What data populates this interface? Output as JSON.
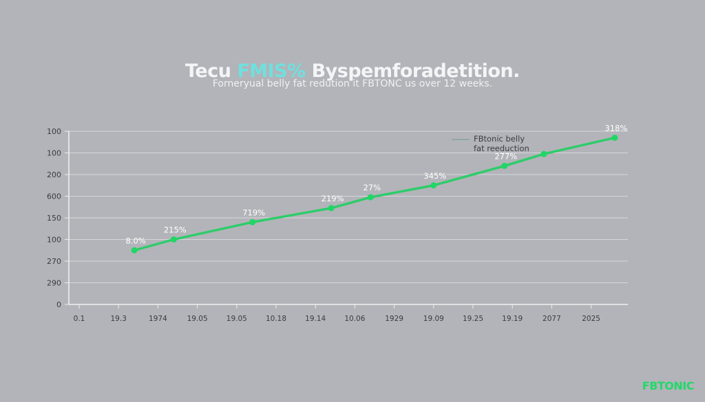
{
  "title": {
    "part1": "Tecu ",
    "accent": "FMIS%",
    "part2": " Byspemforadetition."
  },
  "subtitle": "Forneryual belly fat redution it FBTONC us over 12 weeks.",
  "brand": "FBTONIC",
  "colors": {
    "background": "#b3b4b9",
    "line": "#2ecc6a",
    "accent": "#6fe0de",
    "brand": "#22d86a"
  },
  "chart_data": {
    "type": "line",
    "title": "Tecu FMIS% Byspemforadetition.",
    "subtitle": "Forneryual belly fat redution it FBTONC us over 12 weeks.",
    "xlabel": "",
    "ylabel": "",
    "y_tick_labels": [
      "100",
      "100",
      "200",
      "600",
      "150",
      "100",
      "270",
      "290",
      "0"
    ],
    "x_tick_labels": [
      "0.1",
      "19.3",
      "1974",
      "19.05",
      "19.05",
      "10.18",
      "19.14",
      "10.06",
      "1929",
      "19.09",
      "19.25",
      "19.19",
      "2077",
      "2025"
    ],
    "grid": true,
    "legend": {
      "position": "top-right",
      "entries": [
        "FBtonic belly fat reeduction"
      ]
    },
    "series": [
      {
        "name": "FBtonic belly fat reeduction",
        "points": [
          {
            "label": "8.0%",
            "x_pos": 1.4,
            "y_pos": 2.5
          },
          {
            "label": "215%",
            "x_pos": 2.4,
            "y_pos": 3.0
          },
          {
            "label": "719%",
            "x_pos": 4.4,
            "y_pos": 3.8
          },
          {
            "label": "219%",
            "x_pos": 6.4,
            "y_pos": 4.45
          },
          {
            "label": "27%",
            "x_pos": 7.4,
            "y_pos": 4.95
          },
          {
            "label": "345%",
            "x_pos": 9.0,
            "y_pos": 5.5
          },
          {
            "label": "277%",
            "x_pos": 10.8,
            "y_pos": 6.4
          },
          {
            "label": "",
            "x_pos": 11.8,
            "y_pos": 6.95
          },
          {
            "label": "318%",
            "x_pos": 13.6,
            "y_pos": 7.7
          }
        ]
      }
    ]
  }
}
